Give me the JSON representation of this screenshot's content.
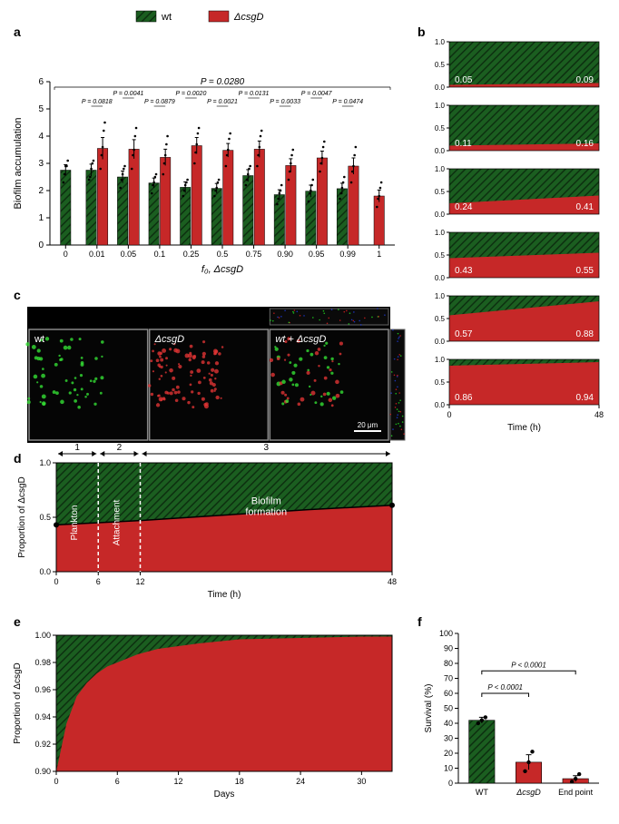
{
  "colors": {
    "wt": "#1b5e20",
    "wt_hatch": "#0d3010",
    "csgd": "#c62828",
    "black": "#000000",
    "white": "#ffffff"
  },
  "legend": {
    "wt_label": "wt",
    "csgd_label": "ΔcsgD"
  },
  "panel_a": {
    "label": "a",
    "xlabel": "f₀, ΔcsgD",
    "ylabel": "Biofilm accumulation",
    "ylim": [
      0,
      6
    ],
    "ytick_step": 1,
    "overall_p": "P = 0.0280",
    "categories": [
      "0",
      "0.01",
      "0.05",
      "0.1",
      "0.25",
      "0.5",
      "0.75",
      "0.90",
      "0.95",
      "0.99",
      "1"
    ],
    "wt_values": [
      2.75,
      2.75,
      2.5,
      2.28,
      2.12,
      2.08,
      2.55,
      1.85,
      1.98,
      2.07,
      null
    ],
    "csgd_values": [
      null,
      3.55,
      3.52,
      3.22,
      3.65,
      3.48,
      3.52,
      2.92,
      3.2,
      2.9,
      1.8
    ],
    "wt_err": [
      0.2,
      0.22,
      0.22,
      0.18,
      0.2,
      0.18,
      0.22,
      0.18,
      0.22,
      0.2,
      0
    ],
    "csgd_err": [
      0,
      0.4,
      0.35,
      0.3,
      0.3,
      0.25,
      0.3,
      0.25,
      0.25,
      0.3,
      0.22
    ],
    "p_values": [
      "P = 0.0818",
      "P = 0.0041",
      "P = 0.0879",
      "P = 0.0020",
      "P = 0.0021",
      "P = 0.0131",
      "P = 0.0033",
      "P = 0.0047",
      "P = 0.0474"
    ],
    "dots_wt": {
      "0": [
        2.3,
        2.6,
        2.9,
        2.9,
        3.1
      ],
      "0.01": [
        2.4,
        2.5,
        2.8,
        3.0,
        3.1
      ],
      "0.05": [
        2.1,
        2.4,
        2.6,
        2.8,
        2.9
      ],
      "0.1": [
        1.9,
        2.2,
        2.3,
        2.5,
        2.6
      ],
      "0.25": [
        1.8,
        2.0,
        2.2,
        2.3,
        2.4
      ],
      "0.5": [
        1.8,
        2.0,
        2.1,
        2.3,
        2.4
      ],
      "0.75": [
        2.2,
        2.4,
        2.6,
        2.8,
        2.9
      ],
      "0.90": [
        1.5,
        1.7,
        1.9,
        2.0,
        2.2
      ],
      "0.95": [
        1.6,
        1.9,
        2.0,
        2.2,
        2.4
      ],
      "0.99": [
        1.7,
        1.9,
        2.1,
        2.3,
        2.5
      ]
    },
    "dots_csgd": {
      "0.01": [
        2.8,
        3.3,
        3.6,
        4.2,
        4.5
      ],
      "0.05": [
        2.8,
        3.3,
        3.5,
        4.0,
        4.3
      ],
      "0.1": [
        2.6,
        3.0,
        3.3,
        3.7,
        4.0
      ],
      "0.25": [
        3.0,
        3.4,
        3.7,
        4.1,
        4.3
      ],
      "0.5": [
        2.9,
        3.3,
        3.5,
        3.9,
        4.1
      ],
      "0.75": [
        2.9,
        3.3,
        3.6,
        4.0,
        4.2
      ],
      "0.90": [
        2.4,
        2.7,
        3.0,
        3.3,
        3.5
      ],
      "0.95": [
        2.7,
        3.0,
        3.2,
        3.6,
        3.8
      ],
      "0.99": [
        2.3,
        2.7,
        2.9,
        3.3,
        3.6
      ],
      "1": [
        1.4,
        1.7,
        1.8,
        2.1,
        2.3
      ]
    }
  },
  "panel_b": {
    "label": "b",
    "xlabel": "Time (h)",
    "xlim": [
      0,
      48
    ],
    "ylim": [
      0,
      1.0
    ],
    "ytick_vals": [
      0,
      0.5,
      1.0
    ],
    "series": [
      {
        "start": 0.05,
        "end": 0.09
      },
      {
        "start": 0.11,
        "end": 0.16
      },
      {
        "start": 0.24,
        "end": 0.41
      },
      {
        "start": 0.43,
        "end": 0.55
      },
      {
        "start": 0.57,
        "end": 0.88
      },
      {
        "start": 0.86,
        "end": 0.94
      }
    ]
  },
  "panel_c": {
    "label": "c",
    "sublabels": [
      "wt",
      "ΔcsgD",
      "wt + ΔcsgD"
    ],
    "scale_label": "20 μm"
  },
  "panel_d": {
    "label": "d",
    "ylabel": "Proportion of ΔcsgD",
    "xlabel": "Time (h)",
    "xlim": [
      0,
      48
    ],
    "ylim": [
      0,
      1.0
    ],
    "ytick_vals": [
      0.0,
      0.5,
      1.0
    ],
    "xtick_vals": [
      0,
      6,
      12,
      48
    ],
    "phases": {
      "1": [
        0,
        6
      ],
      "2": [
        6,
        12
      ],
      "3": [
        12,
        48
      ]
    },
    "phase_labels": [
      "Plankton",
      "Attachment",
      "Biofilm formation"
    ],
    "line": {
      "t": [
        0,
        6,
        12,
        24,
        36,
        48
      ],
      "y": [
        0.43,
        0.45,
        0.47,
        0.52,
        0.57,
        0.61
      ]
    }
  },
  "panel_e": {
    "label": "e",
    "ylabel": "Proportion of ΔcsgD",
    "xlabel": "Days",
    "xlim": [
      0,
      33
    ],
    "ylim": [
      0.9,
      1.0
    ],
    "ytick_vals": [
      0.9,
      0.92,
      0.94,
      0.96,
      0.98,
      1.0
    ],
    "xtick_vals": [
      0,
      6,
      12,
      18,
      24,
      30
    ],
    "line": {
      "t": [
        0,
        1,
        2,
        3,
        4,
        5,
        6,
        8,
        10,
        14,
        18,
        24,
        30,
        33
      ],
      "y": [
        0.9,
        0.935,
        0.955,
        0.965,
        0.972,
        0.977,
        0.98,
        0.986,
        0.99,
        0.994,
        0.997,
        0.998,
        0.999,
        0.999
      ]
    }
  },
  "panel_f": {
    "label": "f",
    "ylabel": "Survival (%)",
    "ylim": [
      0,
      100
    ],
    "ytick_step": 10,
    "categories": [
      "WT",
      "ΔcsgD",
      "End point"
    ],
    "values": [
      42,
      14,
      3
    ],
    "err": [
      2,
      5,
      2
    ],
    "bar_type": [
      "wt",
      "csgd",
      "csgd"
    ],
    "dots": [
      [
        40,
        42,
        44
      ],
      [
        8,
        14,
        21
      ],
      [
        1,
        3,
        6
      ]
    ],
    "p1": "P < 0.0001",
    "p2": "P < 0.0001"
  }
}
